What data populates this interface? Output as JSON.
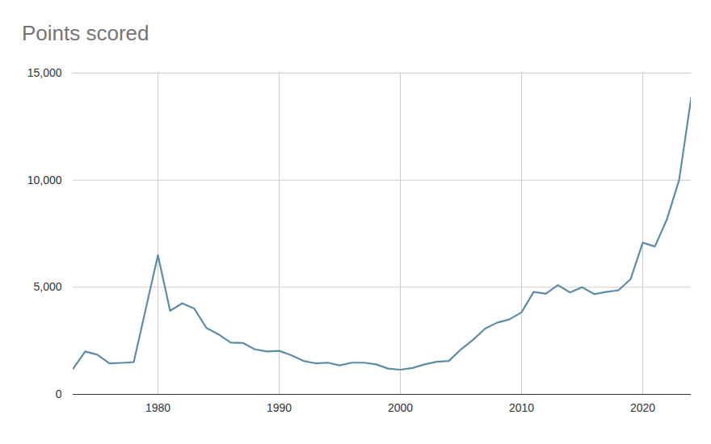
{
  "chart_data": {
    "type": "line",
    "title": "Points scored",
    "x": [
      1973,
      1974,
      1975,
      1976,
      1977,
      1978,
      1979,
      1980,
      1981,
      1982,
      1983,
      1984,
      1985,
      1986,
      1987,
      1988,
      1989,
      1990,
      1991,
      1992,
      1993,
      1994,
      1995,
      1996,
      1997,
      1998,
      1999,
      2000,
      2001,
      2002,
      2003,
      2004,
      2005,
      2006,
      2007,
      2008,
      2009,
      2010,
      2011,
      2012,
      2013,
      2014,
      2015,
      2016,
      2017,
      2018,
      2019,
      2020,
      2021,
      2022,
      2023,
      2024
    ],
    "values": [
      1200,
      2000,
      1850,
      1450,
      1470,
      1500,
      4000,
      6500,
      3900,
      4250,
      4000,
      3100,
      2800,
      2420,
      2400,
      2100,
      2000,
      2030,
      1830,
      1560,
      1450,
      1480,
      1350,
      1480,
      1480,
      1400,
      1200,
      1150,
      1230,
      1400,
      1520,
      1560,
      2100,
      2550,
      3070,
      3350,
      3500,
      3830,
      4780,
      4700,
      5100,
      4760,
      5000,
      4680,
      4780,
      4860,
      5380,
      7080,
      6900,
      8180,
      10000,
      13850
    ],
    "color": "#5b8ea6",
    "xlim": [
      1973,
      2024
    ],
    "xticks": [
      1980,
      1990,
      2000,
      2010,
      2020
    ],
    "ylim": [
      0,
      15000
    ],
    "yticks": [
      0,
      {
        "value": 5000,
        "label": "5,000"
      },
      {
        "value": 10000,
        "label": "10,000"
      },
      {
        "value": 15000,
        "label": "15,000"
      }
    ],
    "grid": true
  }
}
